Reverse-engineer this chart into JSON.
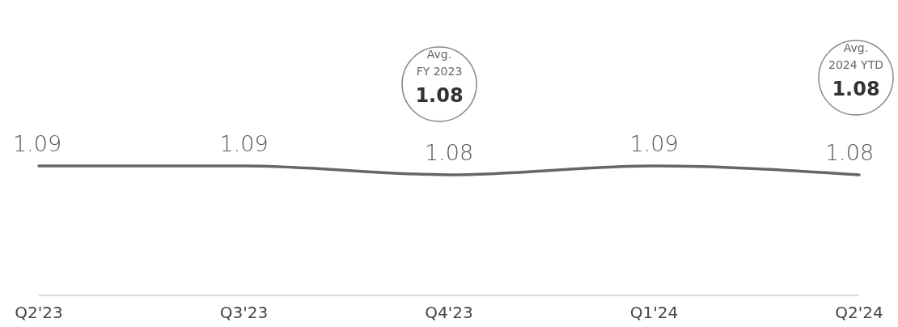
{
  "chart_data": {
    "type": "line",
    "categories": [
      "Q2'23",
      "Q3'23",
      "Q4'23",
      "Q1'24",
      "Q2'24"
    ],
    "values": [
      1.09,
      1.09,
      1.08,
      1.09,
      1.08
    ],
    "color": "#666666",
    "data_labels": true,
    "tick_labels": "x",
    "annotations": [
      "Avg.\nFY 2023\n1.08",
      "Avg.\n2024 YTD\n1.08"
    ]
  }
}
